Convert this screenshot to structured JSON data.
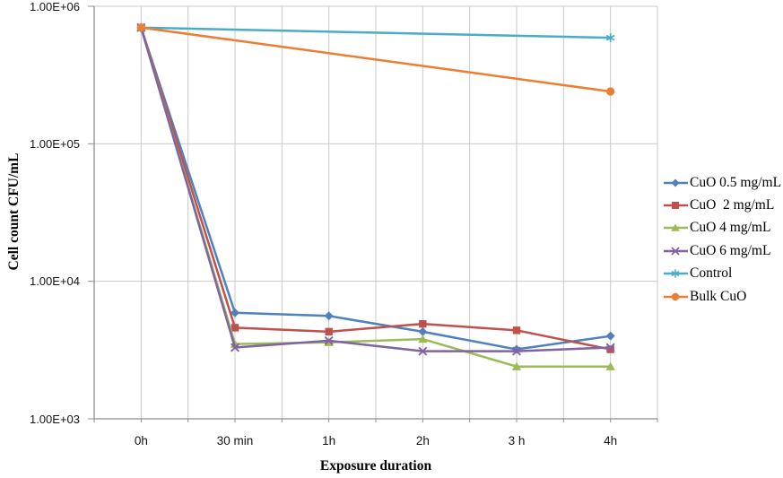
{
  "chart_data": {
    "type": "line",
    "title": "",
    "xlabel": "Exposure duration",
    "ylabel": "Cell count CFU/mL",
    "categories": [
      "0h",
      "30 min",
      "1h",
      "2h",
      "3 h",
      "4h"
    ],
    "y_axis": {
      "scale": "log10",
      "min": 1000,
      "max": 1000000,
      "tick_labels": [
        "1.00E+06",
        "1.00E+05",
        "1.00E+04",
        "1.00E+03"
      ],
      "tick_exponents": [
        6,
        5,
        4,
        3
      ]
    },
    "grid": true,
    "grid_color": "#C9C9C9",
    "axis_color": "#8E8E8E",
    "legend_position": "right",
    "series": [
      {
        "name": "CuO 0.5 mg/mL",
        "color": "#4F81BD",
        "marker": "diamond",
        "values": [
          700000,
          5900,
          5600,
          4300,
          3200,
          4000
        ]
      },
      {
        "name": "CuO  2 mg/mL",
        "color": "#C0504D",
        "marker": "square",
        "values": [
          700000,
          4600,
          4300,
          4900,
          4400,
          3200
        ]
      },
      {
        "name": "CuO 4 mg/mL",
        "color": "#9BBB59",
        "marker": "triangle",
        "values": [
          700000,
          3500,
          3600,
          3800,
          2400,
          2400
        ]
      },
      {
        "name": "CuO 6 mg/mL",
        "color": "#8064A2",
        "marker": "x",
        "values": [
          700000,
          3300,
          3700,
          3100,
          3100,
          3300
        ]
      },
      {
        "name": "Control",
        "color": "#4BACC6",
        "marker": "asterisk",
        "values": [
          700000,
          null,
          null,
          null,
          null,
          590000
        ]
      },
      {
        "name": "Bulk CuO",
        "color": "#ED7D31",
        "marker": "circle",
        "values": [
          700000,
          null,
          null,
          null,
          null,
          240000
        ]
      }
    ]
  }
}
